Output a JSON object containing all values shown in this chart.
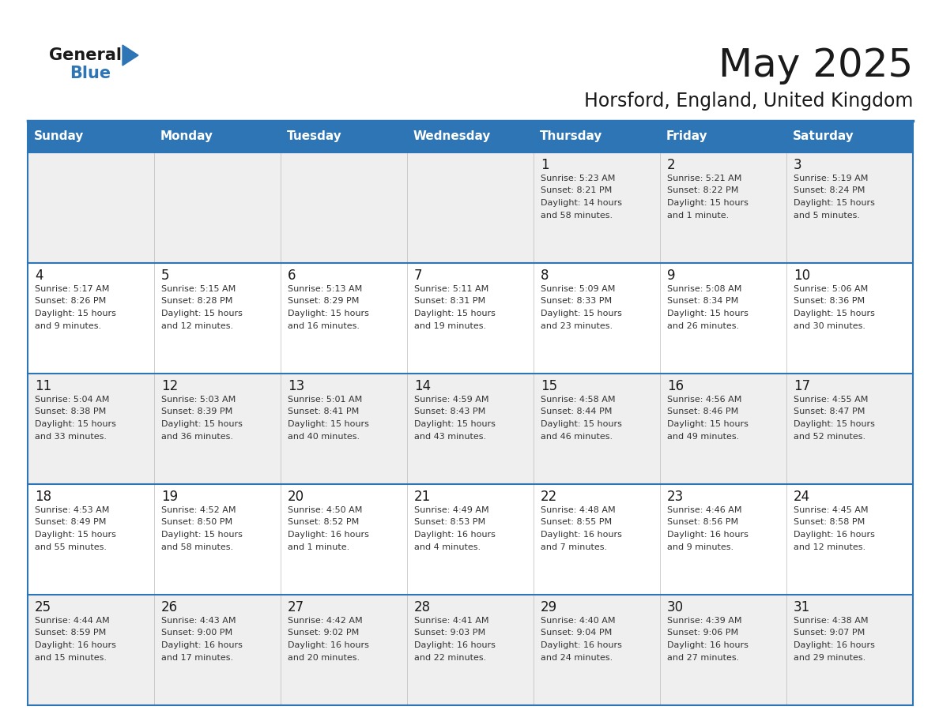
{
  "title": "May 2025",
  "subtitle": "Horsford, England, United Kingdom",
  "days_of_week": [
    "Sunday",
    "Monday",
    "Tuesday",
    "Wednesday",
    "Thursday",
    "Friday",
    "Saturday"
  ],
  "header_bg": "#2E75B6",
  "header_text_color": "#FFFFFF",
  "cell_bg_even": "#EFEFEF",
  "cell_bg_odd": "#FFFFFF",
  "cell_text_color": "#333333",
  "day_num_color": "#1a1a1a",
  "border_color": "#2E75B6",
  "title_color": "#1a1a1a",
  "subtitle_color": "#1a1a1a",
  "logo_general_color": "#1a1a1a",
  "logo_blue_color": "#2E75B6",
  "weeks": [
    [
      {
        "day": null,
        "info": ""
      },
      {
        "day": null,
        "info": ""
      },
      {
        "day": null,
        "info": ""
      },
      {
        "day": null,
        "info": ""
      },
      {
        "day": 1,
        "info": "Sunrise: 5:23 AM\nSunset: 8:21 PM\nDaylight: 14 hours\nand 58 minutes."
      },
      {
        "day": 2,
        "info": "Sunrise: 5:21 AM\nSunset: 8:22 PM\nDaylight: 15 hours\nand 1 minute."
      },
      {
        "day": 3,
        "info": "Sunrise: 5:19 AM\nSunset: 8:24 PM\nDaylight: 15 hours\nand 5 minutes."
      }
    ],
    [
      {
        "day": 4,
        "info": "Sunrise: 5:17 AM\nSunset: 8:26 PM\nDaylight: 15 hours\nand 9 minutes."
      },
      {
        "day": 5,
        "info": "Sunrise: 5:15 AM\nSunset: 8:28 PM\nDaylight: 15 hours\nand 12 minutes."
      },
      {
        "day": 6,
        "info": "Sunrise: 5:13 AM\nSunset: 8:29 PM\nDaylight: 15 hours\nand 16 minutes."
      },
      {
        "day": 7,
        "info": "Sunrise: 5:11 AM\nSunset: 8:31 PM\nDaylight: 15 hours\nand 19 minutes."
      },
      {
        "day": 8,
        "info": "Sunrise: 5:09 AM\nSunset: 8:33 PM\nDaylight: 15 hours\nand 23 minutes."
      },
      {
        "day": 9,
        "info": "Sunrise: 5:08 AM\nSunset: 8:34 PM\nDaylight: 15 hours\nand 26 minutes."
      },
      {
        "day": 10,
        "info": "Sunrise: 5:06 AM\nSunset: 8:36 PM\nDaylight: 15 hours\nand 30 minutes."
      }
    ],
    [
      {
        "day": 11,
        "info": "Sunrise: 5:04 AM\nSunset: 8:38 PM\nDaylight: 15 hours\nand 33 minutes."
      },
      {
        "day": 12,
        "info": "Sunrise: 5:03 AM\nSunset: 8:39 PM\nDaylight: 15 hours\nand 36 minutes."
      },
      {
        "day": 13,
        "info": "Sunrise: 5:01 AM\nSunset: 8:41 PM\nDaylight: 15 hours\nand 40 minutes."
      },
      {
        "day": 14,
        "info": "Sunrise: 4:59 AM\nSunset: 8:43 PM\nDaylight: 15 hours\nand 43 minutes."
      },
      {
        "day": 15,
        "info": "Sunrise: 4:58 AM\nSunset: 8:44 PM\nDaylight: 15 hours\nand 46 minutes."
      },
      {
        "day": 16,
        "info": "Sunrise: 4:56 AM\nSunset: 8:46 PM\nDaylight: 15 hours\nand 49 minutes."
      },
      {
        "day": 17,
        "info": "Sunrise: 4:55 AM\nSunset: 8:47 PM\nDaylight: 15 hours\nand 52 minutes."
      }
    ],
    [
      {
        "day": 18,
        "info": "Sunrise: 4:53 AM\nSunset: 8:49 PM\nDaylight: 15 hours\nand 55 minutes."
      },
      {
        "day": 19,
        "info": "Sunrise: 4:52 AM\nSunset: 8:50 PM\nDaylight: 15 hours\nand 58 minutes."
      },
      {
        "day": 20,
        "info": "Sunrise: 4:50 AM\nSunset: 8:52 PM\nDaylight: 16 hours\nand 1 minute."
      },
      {
        "day": 21,
        "info": "Sunrise: 4:49 AM\nSunset: 8:53 PM\nDaylight: 16 hours\nand 4 minutes."
      },
      {
        "day": 22,
        "info": "Sunrise: 4:48 AM\nSunset: 8:55 PM\nDaylight: 16 hours\nand 7 minutes."
      },
      {
        "day": 23,
        "info": "Sunrise: 4:46 AM\nSunset: 8:56 PM\nDaylight: 16 hours\nand 9 minutes."
      },
      {
        "day": 24,
        "info": "Sunrise: 4:45 AM\nSunset: 8:58 PM\nDaylight: 16 hours\nand 12 minutes."
      }
    ],
    [
      {
        "day": 25,
        "info": "Sunrise: 4:44 AM\nSunset: 8:59 PM\nDaylight: 16 hours\nand 15 minutes."
      },
      {
        "day": 26,
        "info": "Sunrise: 4:43 AM\nSunset: 9:00 PM\nDaylight: 16 hours\nand 17 minutes."
      },
      {
        "day": 27,
        "info": "Sunrise: 4:42 AM\nSunset: 9:02 PM\nDaylight: 16 hours\nand 20 minutes."
      },
      {
        "day": 28,
        "info": "Sunrise: 4:41 AM\nSunset: 9:03 PM\nDaylight: 16 hours\nand 22 minutes."
      },
      {
        "day": 29,
        "info": "Sunrise: 4:40 AM\nSunset: 9:04 PM\nDaylight: 16 hours\nand 24 minutes."
      },
      {
        "day": 30,
        "info": "Sunrise: 4:39 AM\nSunset: 9:06 PM\nDaylight: 16 hours\nand 27 minutes."
      },
      {
        "day": 31,
        "info": "Sunrise: 4:38 AM\nSunset: 9:07 PM\nDaylight: 16 hours\nand 29 minutes."
      }
    ]
  ]
}
